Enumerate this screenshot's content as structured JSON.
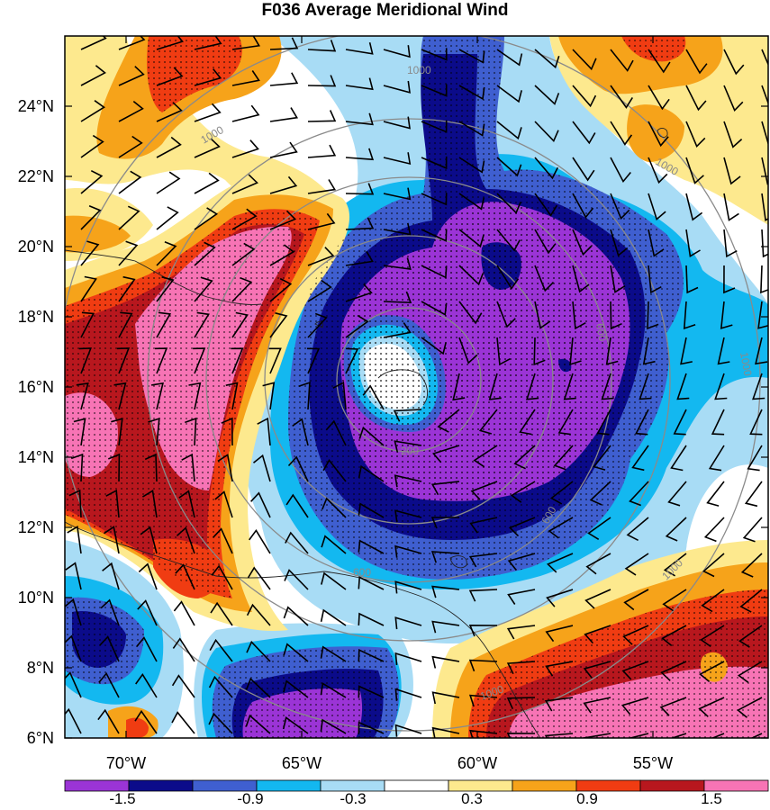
{
  "title": "F036 Average Meridional Wind",
  "map": {
    "lat_range": [
      6,
      26
    ],
    "lon_range": [
      -72,
      -52
    ],
    "lat_ticks": [
      "6°N",
      "8°N",
      "10°N",
      "12°N",
      "14°N",
      "16°N",
      "18°N",
      "20°N",
      "22°N",
      "24°N"
    ],
    "lon_ticks": [
      "70°W",
      "65°W",
      "60°W",
      "55°W"
    ],
    "contour_labels": [
      "200",
      "600",
      "600",
      "600",
      "1000",
      "1000",
      "1000",
      "1000",
      "1000",
      "1000"
    ],
    "storm_center": {
      "lat": 16.3,
      "lon": -61.0
    }
  },
  "colorbar": {
    "labels": [
      "-1.5",
      "-0.9",
      "-0.3",
      "0.3",
      "0.9",
      "1.5"
    ],
    "colors": [
      "#9b34d6",
      "#0b0b8a",
      "#3f5fd0",
      "#13b8f0",
      "#a8dcf5",
      "#ffffff",
      "#fde98e",
      "#f6a31a",
      "#f03c12",
      "#b8171e",
      "#f774b5"
    ]
  },
  "colors": {
    "contour": "#8a8a8a",
    "stipple": "#000000",
    "barb": "#000000"
  }
}
